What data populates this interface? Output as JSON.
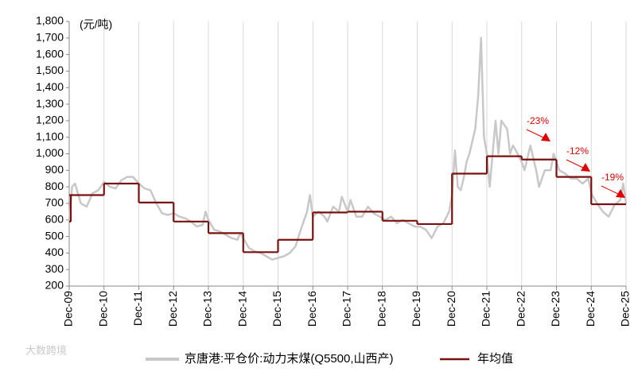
{
  "chart_data": {
    "type": "line",
    "unit_label": "(元/吨)",
    "categories": [
      "Dec-09",
      "Dec-10",
      "Dec-11",
      "Dec-12",
      "Dec-13",
      "Dec-14",
      "Dec-15",
      "Dec-16",
      "Dec-17",
      "Dec-18",
      "Dec-19",
      "Dec-20",
      "Dec-21",
      "Dec-22",
      "Dec-23",
      "Dec-24",
      "Dec-25"
    ],
    "ylim": [
      200,
      1800
    ],
    "yticks": [
      200,
      300,
      400,
      500,
      600,
      700,
      800,
      900,
      {
        "value": 1000,
        "label": "1,000"
      },
      {
        "value": 1100,
        "label": "1,100"
      },
      {
        "value": 1200,
        "label": "1,200"
      },
      {
        "value": 1300,
        "label": "1,300"
      },
      {
        "value": 1400,
        "label": "1,400"
      },
      {
        "value": 1500,
        "label": "1,500"
      },
      {
        "value": 1600,
        "label": "1,600"
      },
      {
        "value": 1700,
        "label": "1,700"
      },
      {
        "value": 1800,
        "label": "1,800"
      }
    ],
    "grid": "x",
    "series": [
      {
        "name": "京唐港:平仓价:动力末煤(Q5500,山西产)",
        "color": "#c8c8c8",
        "x": [
          "2009-12",
          "2010-01",
          "2010-02",
          "2010-04",
          "2010-06",
          "2010-08",
          "2010-10",
          "2010-12",
          "2011-02",
          "2011-04",
          "2011-06",
          "2011-08",
          "2011-10",
          "2011-12",
          "2012-02",
          "2012-04",
          "2012-06",
          "2012-08",
          "2012-10",
          "2012-12",
          "2013-02",
          "2013-04",
          "2013-06",
          "2013-08",
          "2013-10",
          "2013-11",
          "2013-12",
          "2014-02",
          "2014-04",
          "2014-06",
          "2014-08",
          "2014-10",
          "2014-11",
          "2014-12",
          "2015-02",
          "2015-04",
          "2015-06",
          "2015-08",
          "2015-10",
          "2015-12",
          "2016-02",
          "2016-04",
          "2016-06",
          "2016-08",
          "2016-10",
          "2016-11",
          "2016-12",
          "2017-02",
          "2017-04",
          "2017-05",
          "2017-07",
          "2017-09",
          "2017-10",
          "2017-12",
          "2018-01",
          "2018-03",
          "2018-05",
          "2018-07",
          "2018-09",
          "2018-11",
          "2019-01",
          "2019-03",
          "2019-05",
          "2019-07",
          "2019-09",
          "2019-11",
          "2020-01",
          "2020-03",
          "2020-05",
          "2020-07",
          "2020-09",
          "2020-11",
          "2020-12",
          "2021-01",
          "2021-02",
          "2021-03",
          "2021-04",
          "2021-05",
          "2021-06",
          "2021-08",
          "2021-09",
          "2021-10",
          "2021-11",
          "2021-12",
          "2022-01",
          "2022-03",
          "2022-04",
          "2022-05",
          "2022-07",
          "2022-08",
          "2022-09",
          "2022-10",
          "2022-12",
          "2023-01",
          "2023-03",
          "2023-05",
          "2023-06",
          "2023-08",
          "2023-10",
          "2023-11",
          "2023-12",
          "2024-01",
          "2024-03",
          "2024-05",
          "2024-07",
          "2024-09",
          "2024-11",
          "2024-12",
          "2025-02",
          "2025-04",
          "2025-06",
          "2025-08",
          "2025-10",
          "2025-11",
          "2025-12"
        ],
        "values": [
          590,
          800,
          820,
          700,
          680,
          760,
          780,
          830,
          800,
          790,
          840,
          860,
          860,
          820,
          790,
          780,
          700,
          640,
          630,
          640,
          620,
          610,
          590,
          560,
          570,
          650,
          600,
          540,
          530,
          510,
          490,
          480,
          520,
          490,
          430,
          410,
          400,
          380,
          360,
          370,
          380,
          400,
          440,
          550,
          650,
          750,
          620,
          650,
          620,
          590,
          680,
          650,
          740,
          650,
          720,
          620,
          620,
          680,
          640,
          620,
          600,
          620,
          580,
          600,
          580,
          560,
          560,
          540,
          490,
          560,
          580,
          650,
          750,
          1020,
          800,
          780,
          850,
          950,
          1000,
          1150,
          1350,
          1700,
          1100,
          1000,
          800,
          1200,
          1000,
          1200,
          1150,
          1000,
          1050,
          1020,
          950,
          900,
          1050,
          900,
          800,
          900,
          900,
          1000,
          950,
          900,
          880,
          850,
          850,
          820,
          850,
          760,
          700,
          650,
          620,
          690,
          720,
          820,
          700
        ]
      },
      {
        "name": "年均值",
        "color": "#7b1010",
        "step": true,
        "values": [
          590,
          750,
          820,
          705,
          590,
          520,
          405,
          480,
          645,
          650,
          595,
          575,
          880,
          985,
          965,
          860,
          695
        ]
      }
    ],
    "annotations": [
      "-23%",
      "-12%",
      "-19%"
    ],
    "watermark": "大数跨境"
  }
}
